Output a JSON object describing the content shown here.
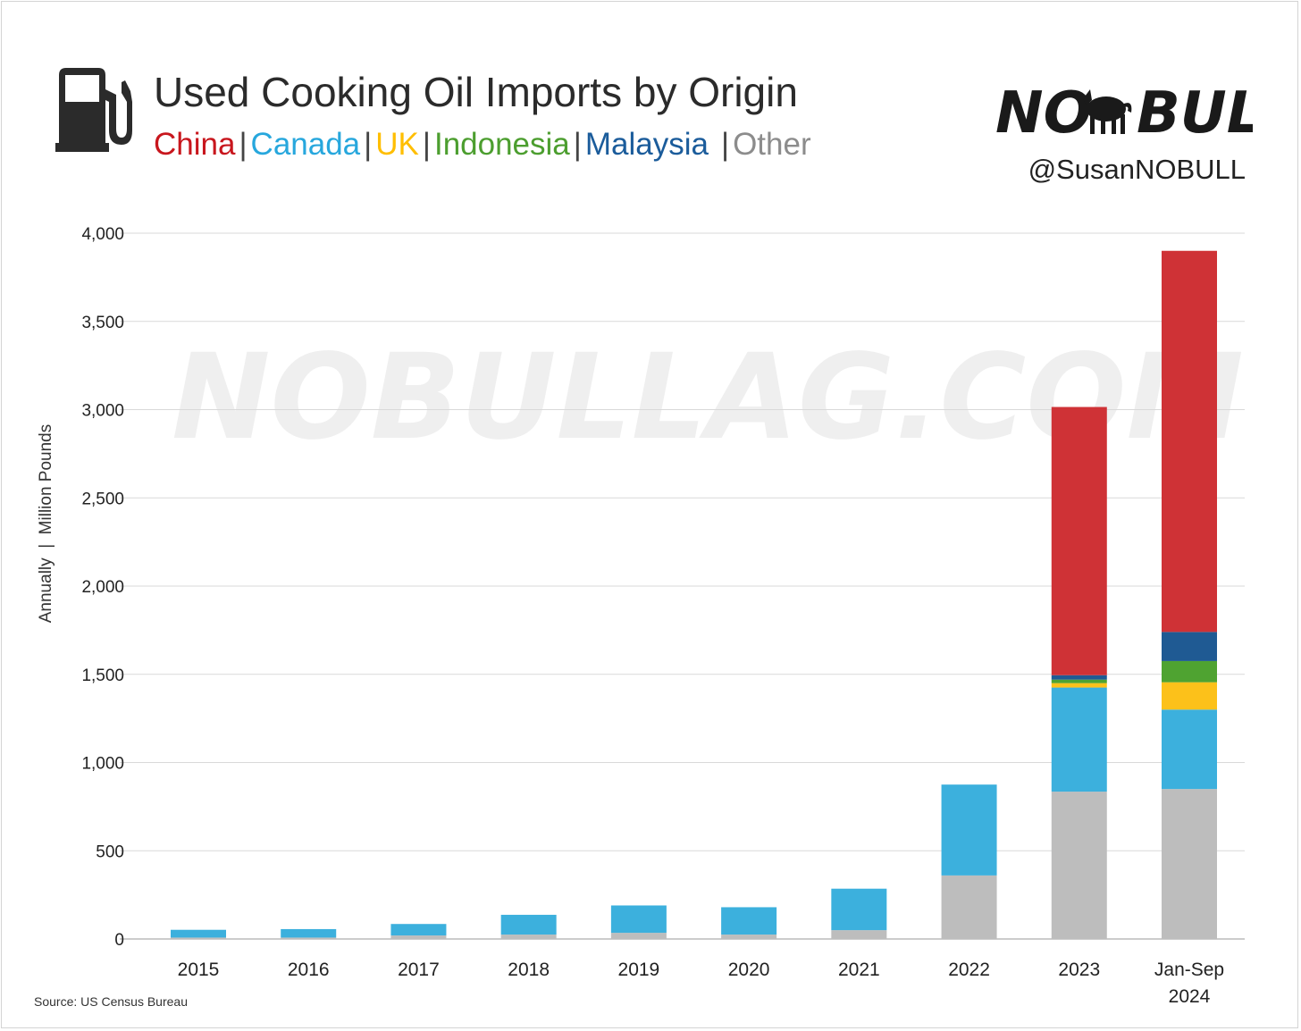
{
  "header": {
    "title": "Used Cooking Oil Imports by Origin",
    "handle": "@SusanNOBULL",
    "logo": {
      "left": "NO",
      "right": "BULL"
    },
    "watermark": "NOBULLAG.COM"
  },
  "legend": [
    {
      "label": "China",
      "color": "#c8161d"
    },
    {
      "label": "Canada",
      "color": "#27a7dd"
    },
    {
      "label": "UK",
      "color": "#ffbe00"
    },
    {
      "label": "Indonesia",
      "color": "#4c9e2f"
    },
    {
      "label": "Malaysia",
      "color": "#1b5c9b"
    },
    {
      "label": "Other",
      "color": "#8c8c8c"
    }
  ],
  "source": "Source:  US Census Bureau",
  "chart_data": {
    "type": "bar",
    "stacked": true,
    "title": "Used Cooking Oil Imports by Origin",
    "ylabel": "Annually  |  Million Pounds",
    "xlabel": "",
    "ylim": [
      0,
      4000
    ],
    "yticks": [
      "0",
      "500",
      "1,000",
      "1,500",
      "2,000",
      "2,500",
      "3,000",
      "3,500",
      "4,000"
    ],
    "grid": true,
    "categories": [
      "2015",
      "2016",
      "2017",
      "2018",
      "2019",
      "2020",
      "2021",
      "2022",
      "2023",
      "Jan-Sep 2024"
    ],
    "series": [
      {
        "name": "Other",
        "color": "#bdbdbd",
        "values": [
          8,
          8,
          20,
          25,
          35,
          25,
          50,
          360,
          835,
          850
        ]
      },
      {
        "name": "Canada",
        "color": "#3cb0dd",
        "values": [
          44,
          48,
          65,
          112,
          155,
          155,
          235,
          515,
          590,
          450
        ]
      },
      {
        "name": "UK",
        "color": "#fcc11a",
        "values": [
          0,
          0,
          0,
          0,
          0,
          0,
          0,
          0,
          25,
          155
        ]
      },
      {
        "name": "Indonesia",
        "color": "#4fa331",
        "values": [
          0,
          0,
          0,
          0,
          0,
          0,
          0,
          0,
          20,
          120
        ]
      },
      {
        "name": "Malaysia",
        "color": "#1f5a93",
        "values": [
          0,
          0,
          0,
          0,
          0,
          0,
          0,
          0,
          25,
          165
        ]
      },
      {
        "name": "China",
        "color": "#cf3236",
        "values": [
          0,
          0,
          0,
          0,
          0,
          0,
          0,
          0,
          1520,
          2160
        ]
      }
    ]
  }
}
